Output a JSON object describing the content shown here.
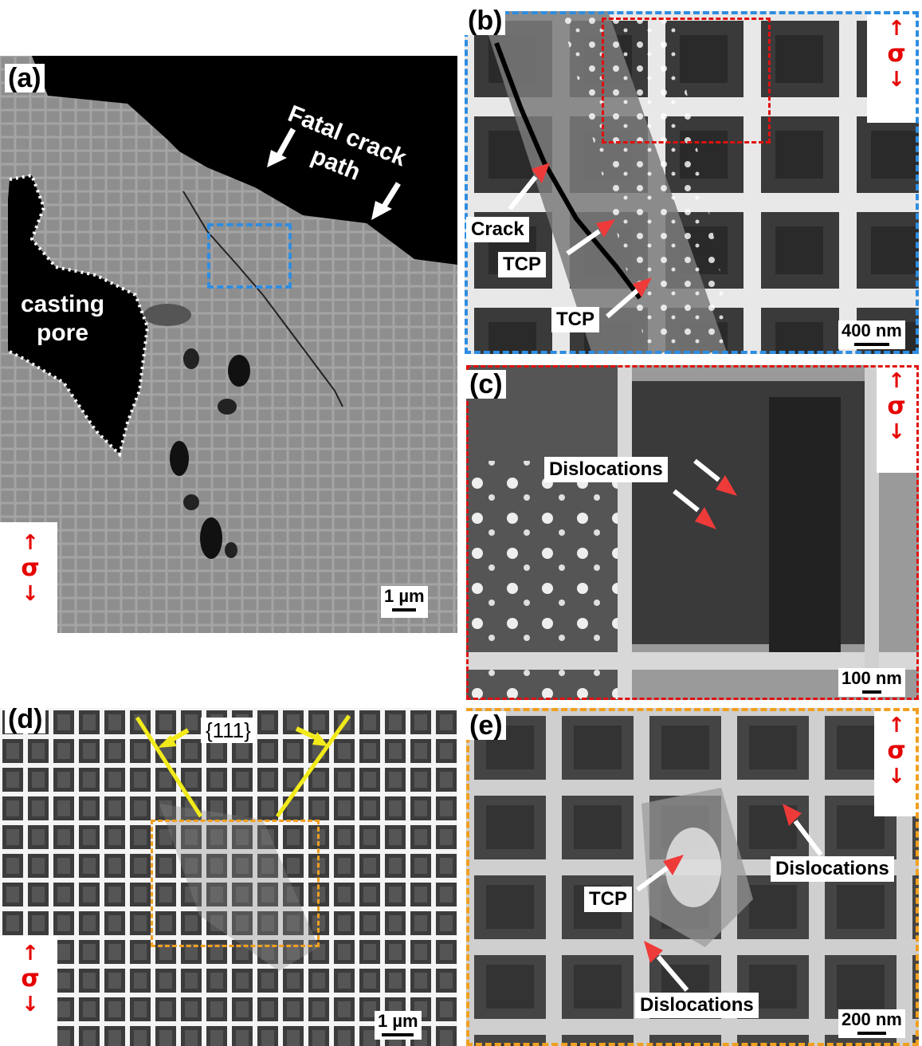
{
  "panels": {
    "a": {
      "label": "(a)",
      "annotations": {
        "fatal_crack_path": "Fatal crack\npath",
        "casting_pore": "casting\npore"
      },
      "scale_bar": "1 µm",
      "sigma": "σ"
    },
    "b": {
      "label": "(b)",
      "annotations": {
        "crack": "Crack",
        "tcp_1": "TCP",
        "tcp_2": "TCP"
      },
      "scale_bar": "400 nm",
      "sigma": "σ"
    },
    "c": {
      "label": "(c)",
      "annotations": {
        "dislocations": "Dislocations"
      },
      "scale_bar": "100 nm",
      "sigma": "σ"
    },
    "d": {
      "label": "(d)",
      "annotations": {
        "plane": "{111}"
      },
      "scale_bar": "1 µm",
      "sigma": "σ"
    },
    "e": {
      "label": "(e)",
      "annotations": {
        "tcp": "TCP",
        "dislocations_1": "Dislocations",
        "dislocations_2": "Dislocations"
      },
      "scale_bar": "200 nm",
      "sigma": "σ"
    }
  },
  "colors": {
    "stress_arrow": "#e60000",
    "box_b": "#2f8de0",
    "box_c": "#e01010",
    "box_e": "#f0a020",
    "slip_lines": "#f2ea1a",
    "pointer_arrow": "#ef3a3a"
  }
}
